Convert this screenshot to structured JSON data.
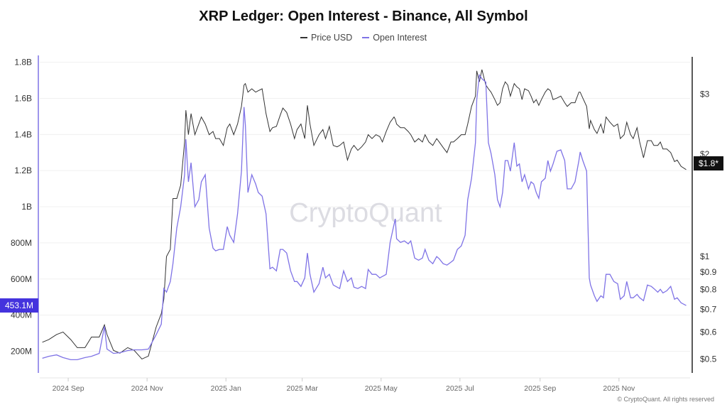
{
  "chart_data": {
    "type": "line",
    "title": "XRP Ledger: Open Interest - Binance, All Symbol",
    "watermark": "CryptoQuant",
    "copyright": "© CryptoQuant. All rights reserved",
    "legend_position": "top-center",
    "grid": true,
    "colors": {
      "price": "#333333",
      "open_interest": "#7f73e6",
      "oi_badge": "#4433dd",
      "price_badge": "#111111"
    },
    "x_ticks": [
      "2024 Sep",
      "2024 Nov",
      "2025 Jan",
      "2025 Mar",
      "2025 May",
      "2025 Jul",
      "2025 Sep",
      "2025 Nov"
    ],
    "x_tick_dates": [
      "2024-09-01",
      "2024-11-01",
      "2025-01-01",
      "2025-03-01",
      "2025-05-01",
      "2025-07-01",
      "2025-09-01",
      "2025-11-01"
    ],
    "xlim": [
      "2024-08-10",
      "2025-12-26"
    ],
    "left_axis": {
      "scale": "linear",
      "ylim": [
        80000000,
        1830000000
      ],
      "ticks": [
        200000000,
        400000000,
        600000000,
        800000000,
        1000000000,
        1200000000,
        1400000000,
        1600000000,
        1800000000
      ],
      "tick_labels": [
        "200M",
        "400M",
        "600M",
        "800M",
        "1B",
        "1.2B",
        "1.4B",
        "1.6B",
        "1.8B"
      ],
      "current_label": "453.1M"
    },
    "right_axis": {
      "scale": "log",
      "ylim": [
        0.455,
        3.86
      ],
      "ticks": [
        0.5,
        0.6,
        0.7,
        0.8,
        0.9,
        1,
        2,
        3
      ],
      "tick_labels": [
        "$0.5",
        "$0.6",
        "$0.7",
        "$0.8",
        "$0.9",
        "$1",
        "$2",
        "$3"
      ],
      "current_label": "$1.8*"
    },
    "dates": [
      "2024-08-12",
      "2024-08-17",
      "2024-08-23",
      "2024-08-28",
      "2024-09-03",
      "2024-09-08",
      "2024-09-14",
      "2024-09-19",
      "2024-09-25",
      "2024-09-29",
      "2024-10-01",
      "2024-10-06",
      "2024-10-11",
      "2024-10-17",
      "2024-10-22",
      "2024-10-28",
      "2024-11-02",
      "2024-11-08",
      "2024-11-12",
      "2024-11-14",
      "2024-11-16",
      "2024-11-19",
      "2024-11-21",
      "2024-11-24",
      "2024-11-27",
      "2024-11-30",
      "2024-12-01",
      "2024-12-03",
      "2024-12-05",
      "2024-12-08",
      "2024-12-11",
      "2024-12-13",
      "2024-12-16",
      "2024-12-19",
      "2024-12-22",
      "2024-12-24",
      "2024-12-27",
      "2024-12-30",
      "2025-01-02",
      "2025-01-04",
      "2025-01-07",
      "2025-01-10",
      "2025-01-13",
      "2025-01-15",
      "2025-01-16",
      "2025-01-18",
      "2025-01-21",
      "2025-01-24",
      "2025-01-26",
      "2025-01-29",
      "2025-02-01",
      "2025-02-04",
      "2025-02-06",
      "2025-02-09",
      "2025-02-12",
      "2025-02-14",
      "2025-02-17",
      "2025-02-20",
      "2025-02-23",
      "2025-02-25",
      "2025-02-28",
      "2025-03-03",
      "2025-03-05",
      "2025-03-07",
      "2025-03-10",
      "2025-03-14",
      "2025-03-17",
      "2025-03-19",
      "2025-03-22",
      "2025-03-25",
      "2025-03-28",
      "2025-03-30",
      "2025-04-02",
      "2025-04-05",
      "2025-04-08",
      "2025-04-10",
      "2025-04-13",
      "2025-04-16",
      "2025-04-19",
      "2025-04-21",
      "2025-04-24",
      "2025-04-27",
      "2025-04-30",
      "2025-05-02",
      "2025-05-05",
      "2025-05-08",
      "2025-05-11",
      "2025-05-12",
      "2025-05-13",
      "2025-05-16",
      "2025-05-19",
      "2025-05-22",
      "2025-05-24",
      "2025-05-27",
      "2025-05-30",
      "2025-06-02",
      "2025-06-04",
      "2025-06-07",
      "2025-06-10",
      "2025-06-13",
      "2025-06-15",
      "2025-06-18",
      "2025-06-21",
      "2025-06-24",
      "2025-06-26",
      "2025-06-29",
      "2025-07-02",
      "2025-07-05",
      "2025-07-07",
      "2025-07-10",
      "2025-07-13",
      "2025-07-14",
      "2025-07-16",
      "2025-07-18",
      "2025-07-21",
      "2025-07-23",
      "2025-07-25",
      "2025-07-28",
      "2025-07-30",
      "2025-08-01",
      "2025-08-03",
      "2025-08-05",
      "2025-08-07",
      "2025-08-09",
      "2025-08-12",
      "2025-08-14",
      "2025-08-16",
      "2025-08-18",
      "2025-08-20",
      "2025-08-23",
      "2025-08-25",
      "2025-08-27",
      "2025-08-29",
      "2025-08-31",
      "2025-09-02",
      "2025-09-05",
      "2025-09-07",
      "2025-09-09",
      "2025-09-11",
      "2025-09-14",
      "2025-09-17",
      "2025-09-20",
      "2025-09-22",
      "2025-09-25",
      "2025-09-28",
      "2025-10-01",
      "2025-10-02",
      "2025-10-04",
      "2025-10-07",
      "2025-10-09",
      "2025-10-10",
      "2025-10-13",
      "2025-10-15",
      "2025-10-18",
      "2025-10-20",
      "2025-10-22",
      "2025-10-25",
      "2025-10-28",
      "2025-10-31",
      "2025-11-02",
      "2025-11-05",
      "2025-11-07",
      "2025-11-10",
      "2025-11-12",
      "2025-11-15",
      "2025-11-17",
      "2025-11-20",
      "2025-11-23",
      "2025-11-26",
      "2025-11-28",
      "2025-12-01",
      "2025-12-03",
      "2025-12-05",
      "2025-12-08",
      "2025-12-11",
      "2025-12-14",
      "2025-12-16",
      "2025-12-19",
      "2025-12-23"
    ],
    "series": [
      {
        "name": "Price USD",
        "axis": "right",
        "values": [
          0.56,
          0.57,
          0.59,
          0.6,
          0.57,
          0.54,
          0.54,
          0.58,
          0.58,
          0.63,
          0.59,
          0.53,
          0.52,
          0.54,
          0.53,
          0.5,
          0.51,
          0.62,
          0.68,
          0.75,
          1.0,
          1.05,
          1.48,
          1.48,
          1.62,
          2.17,
          2.69,
          2.28,
          2.63,
          2.28,
          2.45,
          2.57,
          2.45,
          2.28,
          2.33,
          2.22,
          2.22,
          2.12,
          2.39,
          2.45,
          2.28,
          2.45,
          2.76,
          3.19,
          3.22,
          3.04,
          3.11,
          3.04,
          3.07,
          3.11,
          2.63,
          2.33,
          2.39,
          2.41,
          2.6,
          2.73,
          2.65,
          2.45,
          2.22,
          2.36,
          2.45,
          2.22,
          2.78,
          2.45,
          2.12,
          2.28,
          2.36,
          2.22,
          2.41,
          2.12,
          2.1,
          2.12,
          2.17,
          1.92,
          2.07,
          2.12,
          2.05,
          2.1,
          2.17,
          2.28,
          2.22,
          2.28,
          2.25,
          2.17,
          2.33,
          2.48,
          2.57,
          2.53,
          2.45,
          2.39,
          2.39,
          2.33,
          2.28,
          2.17,
          2.22,
          2.17,
          2.28,
          2.17,
          2.12,
          2.22,
          2.17,
          2.09,
          2.02,
          2.17,
          2.17,
          2.22,
          2.28,
          2.28,
          2.45,
          2.76,
          2.96,
          3.51,
          3.26,
          3.54,
          3.19,
          3.11,
          3.04,
          2.89,
          2.78,
          2.83,
          3.11,
          3.26,
          3.19,
          2.96,
          3.22,
          3.15,
          3.11,
          2.89,
          3.11,
          3.07,
          2.96,
          2.83,
          2.89,
          2.78,
          2.89,
          3.04,
          3.11,
          3.07,
          2.89,
          2.92,
          2.96,
          2.83,
          2.76,
          2.83,
          2.83,
          3.04,
          3.04,
          2.92,
          2.76,
          2.37,
          2.51,
          2.36,
          2.3,
          2.45,
          2.3,
          2.57,
          2.48,
          2.41,
          2.45,
          2.22,
          2.28,
          2.48,
          2.28,
          2.22,
          2.39,
          2.17,
          1.95,
          2.19,
          2.19,
          2.12,
          2.12,
          2.17,
          2.07,
          2.07,
          2.02,
          1.9,
          1.92,
          1.84,
          1.8
        ]
      },
      {
        "name": "Open Interest",
        "axis": "left",
        "values": [
          161000000,
          172000000,
          180000000,
          165000000,
          153000000,
          153000000,
          165000000,
          172000000,
          188000000,
          338000000,
          212000000,
          188000000,
          192000000,
          204000000,
          208000000,
          208000000,
          212000000,
          291000000,
          350000000,
          547000000,
          527000000,
          586000000,
          685000000,
          882000000,
          1000000000,
          1177000000,
          1374000000,
          1138000000,
          1244000000,
          1000000000,
          1039000000,
          1138000000,
          1177000000,
          882000000,
          771000000,
          756000000,
          764000000,
          764000000,
          890000000,
          842000000,
          803000000,
          961000000,
          1197000000,
          1552000000,
          1453000000,
          1079000000,
          1177000000,
          1126000000,
          1079000000,
          1059000000,
          961000000,
          657000000,
          665000000,
          645000000,
          764000000,
          764000000,
          744000000,
          645000000,
          586000000,
          586000000,
          559000000,
          606000000,
          744000000,
          626000000,
          527000000,
          574000000,
          665000000,
          606000000,
          626000000,
          567000000,
          555000000,
          547000000,
          645000000,
          586000000,
          606000000,
          555000000,
          547000000,
          559000000,
          547000000,
          653000000,
          626000000,
          626000000,
          606000000,
          614000000,
          626000000,
          803000000,
          902000000,
          933000000,
          823000000,
          803000000,
          811000000,
          795000000,
          811000000,
          716000000,
          704000000,
          716000000,
          764000000,
          704000000,
          685000000,
          724000000,
          712000000,
          685000000,
          677000000,
          693000000,
          704000000,
          764000000,
          783000000,
          842000000,
          1039000000,
          1158000000,
          1355000000,
          1591000000,
          1729000000,
          1709000000,
          1690000000,
          1355000000,
          1296000000,
          1177000000,
          1039000000,
          1000000000,
          1079000000,
          1256000000,
          1256000000,
          1197000000,
          1355000000,
          1225000000,
          1237000000,
          1138000000,
          1177000000,
          1099000000,
          1138000000,
          1126000000,
          1079000000,
          1047000000,
          1138000000,
          1158000000,
          1256000000,
          1197000000,
          1237000000,
          1307000000,
          1315000000,
          1256000000,
          1099000000,
          1099000000,
          1138000000,
          1256000000,
          1303000000,
          1256000000,
          1197000000,
          606000000,
          567000000,
          507000000,
          476000000,
          507000000,
          496000000,
          626000000,
          626000000,
          586000000,
          574000000,
          488000000,
          507000000,
          586000000,
          496000000,
          496000000,
          515000000,
          496000000,
          480000000,
          567000000,
          559000000,
          547000000,
          527000000,
          543000000,
          523000000,
          535000000,
          559000000,
          488000000,
          496000000,
          468000000,
          453100000
        ]
      }
    ]
  }
}
